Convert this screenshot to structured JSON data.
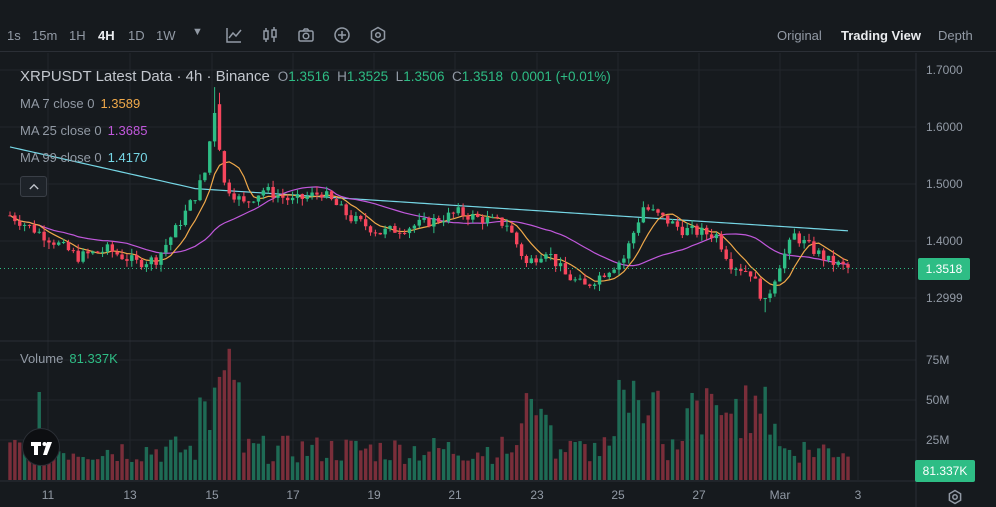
{
  "toolbar": {
    "timeframes": [
      {
        "label": "1s",
        "active": false
      },
      {
        "label": "15m",
        "active": false
      },
      {
        "label": "1H",
        "active": false
      },
      {
        "label": "4H",
        "active": true
      },
      {
        "label": "1D",
        "active": false
      },
      {
        "label": "1W",
        "active": false
      }
    ],
    "view_tabs": [
      {
        "label": "Original",
        "active": false
      },
      {
        "label": "Trading View",
        "active": true
      },
      {
        "label": "Depth",
        "active": false
      }
    ]
  },
  "legend": {
    "title": "XRPUSDT Latest Data · 4h · Binance",
    "open_label": "O",
    "open": "1.3516",
    "high_label": "H",
    "high": "1.3525",
    "low_label": "L",
    "low": "1.3506",
    "close_label": "C",
    "close": "1.3518",
    "change": "0.0001 (+0.01%)",
    "ma": [
      {
        "label": "MA 7 close 0",
        "value": "1.3589",
        "color": "#f0a94a"
      },
      {
        "label": "MA 25 close 0",
        "value": "1.3685",
        "color": "#c158dc"
      },
      {
        "label": "MA 99 close 0",
        "value": "1.4170",
        "color": "#76d7e6"
      }
    ],
    "collapse_symbol": "^"
  },
  "volume_legend": {
    "label": "Volume",
    "value": "81.337K"
  },
  "current_price_label": "1.3518",
  "current_volume_label": "81.337K",
  "colors": {
    "up": "#2ebd85",
    "down": "#f6465d",
    "up_vol": "#1e6b55",
    "down_vol": "#7a2e3a"
  },
  "chart_data": {
    "type": "candlestick",
    "price_axis": {
      "ticks": [
        "1.7000",
        "1.6000",
        "1.5000",
        "1.4000",
        "1.2999"
      ],
      "tick_values": [
        1.7,
        1.6,
        1.5,
        1.4,
        1.3
      ],
      "range": [
        1.265,
        1.72
      ]
    },
    "volume_axis": {
      "ticks": [
        "75M",
        "50M",
        "25M"
      ],
      "tick_values": [
        75,
        50,
        25
      ],
      "range": [
        0,
        95
      ]
    },
    "x_axis": {
      "ticks": [
        "11",
        "13",
        "15",
        "17",
        "19",
        "21",
        "23",
        "25",
        "27",
        "Mar",
        "3"
      ]
    },
    "current_price": 1.3518
  }
}
